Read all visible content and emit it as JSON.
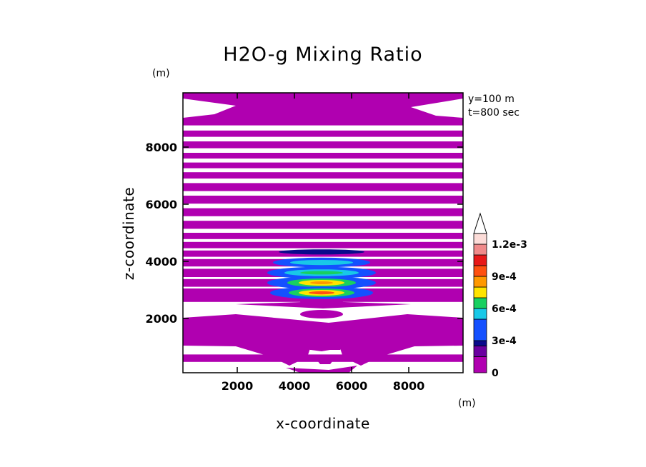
{
  "chart_data": {
    "type": "heatmap",
    "title": "H2O-g Mixing Ratio",
    "xlabel": "x-coordinate",
    "ylabel": "z-coordinate",
    "x_unit": "(m)",
    "y_unit": "(m)",
    "annotations": [
      "y=100 m",
      "t=800 sec"
    ],
    "xlim": [
      100,
      9900
    ],
    "ylim": [
      100,
      9900
    ],
    "x_ticks": [
      2000,
      4000,
      6000,
      8000
    ],
    "x_tick_labels": [
      "2000",
      "4000",
      "6000",
      "8000"
    ],
    "y_ticks": [
      2000,
      4000,
      6000,
      8000
    ],
    "y_tick_labels": [
      "2000",
      "4000",
      "6000",
      "8000"
    ],
    "background_color": "#b000b0",
    "levels": [
      {
        "color": "#b000b0",
        "from": 0
      },
      {
        "color": "#6a00a0",
        "from": 0.00015
      },
      {
        "color": "#0a0a8c",
        "from": 0.00025
      },
      {
        "color": "#1450ff",
        "from": 0.0003
      },
      {
        "color": "#18c8e8",
        "from": 0.0005
      },
      {
        "color": "#18d060",
        "from": 0.0006
      },
      {
        "color": "#ffe400",
        "from": 0.0007
      },
      {
        "color": "#ff9800",
        "from": 0.0008
      },
      {
        "color": "#ff5010",
        "from": 0.0009
      },
      {
        "color": "#e81818",
        "from": 0.001
      },
      {
        "color": "#f08a8a",
        "from": 0.0011
      },
      {
        "color": "#fcdcd8",
        "from": 0.0012
      }
    ],
    "colorbar_labels": [
      {
        "value": 0,
        "text": "0"
      },
      {
        "value": 0.0003,
        "text": "3e-4"
      },
      {
        "value": 0.0006,
        "text": "6e-4"
      },
      {
        "value": 0.0009,
        "text": "9e-4"
      },
      {
        "value": 0.0012,
        "text": "1.2e-3"
      }
    ],
    "colorbar_range": [
      0,
      0.0013
    ],
    "zero_contour_bands_z": [
      [
        8580,
        8760
      ],
      [
        8200,
        8360
      ],
      [
        7800,
        7960
      ],
      [
        7460,
        7600
      ],
      [
        7120,
        7260
      ],
      [
        6740,
        6900
      ],
      [
        6300,
        6460
      ],
      [
        5860,
        6020
      ],
      [
        5420,
        5580
      ],
      [
        5000,
        5140
      ],
      [
        4680,
        4780
      ],
      [
        4380,
        4460
      ],
      [
        4080,
        4160
      ],
      [
        3740,
        3820
      ],
      [
        3380,
        3450
      ],
      [
        3050,
        3110
      ],
      [
        1730,
        2580
      ],
      [
        740,
        1310
      ],
      [
        100,
        480
      ]
    ],
    "peak_cells": [
      {
        "x": 4950,
        "z": 4330,
        "rx": 1500,
        "rz": 90,
        "value": 0.00028
      },
      {
        "x": 4950,
        "z": 3960,
        "rx": 1700,
        "rz": 170,
        "value": 0.0003
      },
      {
        "x": 4950,
        "z": 3960,
        "rx": 1100,
        "rz": 90,
        "value": 0.00055
      },
      {
        "x": 4950,
        "z": 3600,
        "rx": 1900,
        "rz": 210,
        "value": 0.0003
      },
      {
        "x": 4950,
        "z": 3600,
        "rx": 1300,
        "rz": 120,
        "value": 0.00055
      },
      {
        "x": 4950,
        "z": 3600,
        "rx": 750,
        "rz": 60,
        "value": 0.0006
      },
      {
        "x": 4950,
        "z": 3250,
        "rx": 1900,
        "rz": 220,
        "value": 0.0003
      },
      {
        "x": 4950,
        "z": 3250,
        "rx": 1200,
        "rz": 150,
        "value": 0.00065
      },
      {
        "x": 4950,
        "z": 3250,
        "rx": 800,
        "rz": 100,
        "value": 0.00075
      },
      {
        "x": 4950,
        "z": 3250,
        "rx": 400,
        "rz": 50,
        "value": 0.00085
      },
      {
        "x": 4950,
        "z": 2900,
        "rx": 1800,
        "rz": 220,
        "value": 0.0003
      },
      {
        "x": 4950,
        "z": 2900,
        "rx": 1150,
        "rz": 150,
        "value": 0.00065
      },
      {
        "x": 4950,
        "z": 2900,
        "rx": 800,
        "rz": 100,
        "value": 0.00075
      },
      {
        "x": 4950,
        "z": 2900,
        "rx": 450,
        "rz": 55,
        "value": 0.0009
      }
    ]
  }
}
